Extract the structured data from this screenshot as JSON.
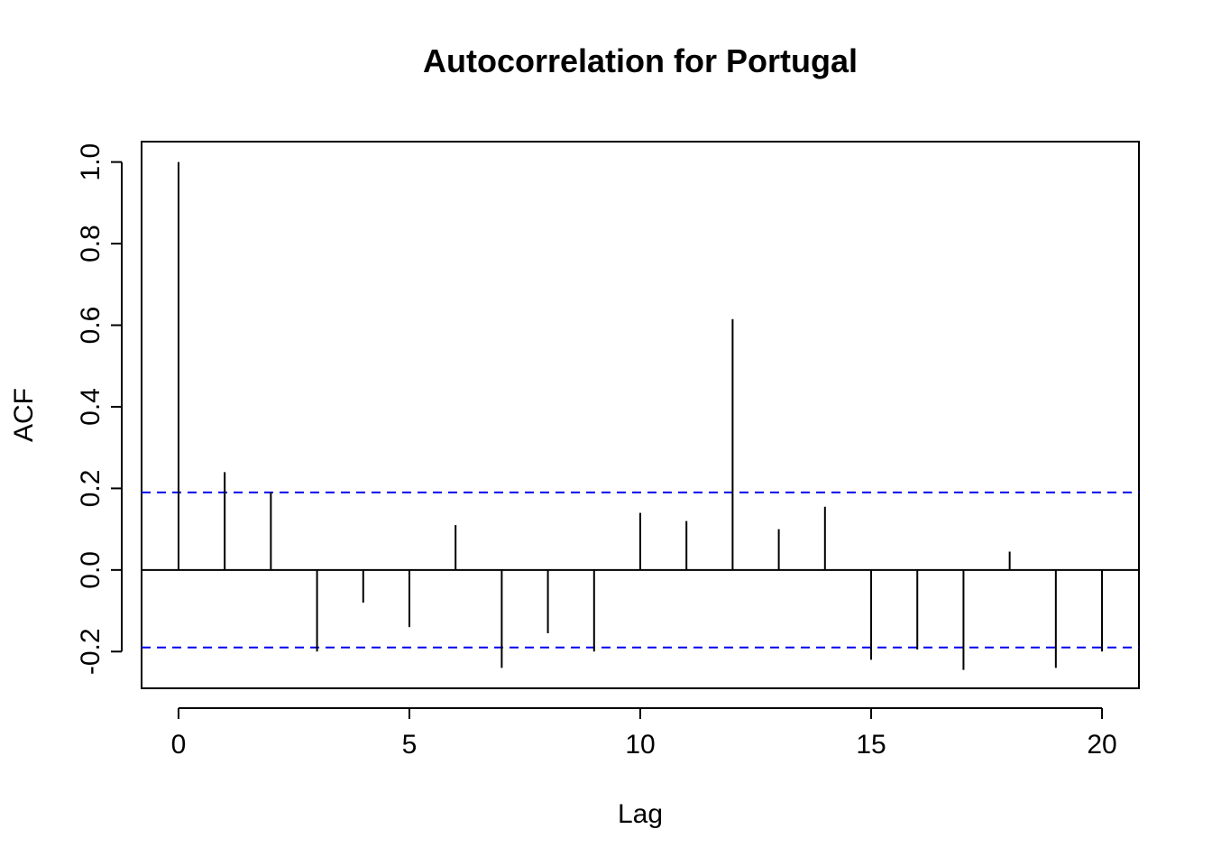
{
  "chart_data": {
    "type": "bar",
    "title": "Autocorrelation for Portugal",
    "xlabel": "Lag",
    "ylabel": "ACF",
    "x": [
      0,
      1,
      2,
      3,
      4,
      5,
      6,
      7,
      8,
      9,
      10,
      11,
      12,
      13,
      14,
      15,
      16,
      17,
      18,
      19,
      20
    ],
    "values": [
      1.0,
      0.24,
      0.19,
      -0.2,
      -0.08,
      -0.14,
      0.11,
      -0.24,
      -0.155,
      -0.2,
      0.14,
      0.12,
      0.615,
      0.1,
      0.155,
      -0.22,
      -0.195,
      -0.245,
      0.045,
      -0.24,
      -0.2
    ],
    "xlim": [
      -0.8,
      20.8
    ],
    "ylim": [
      -0.29,
      1.05
    ],
    "x_ticks": [
      0,
      5,
      10,
      15,
      20
    ],
    "x_tick_labels": [
      "0",
      "5",
      "10",
      "15",
      "20"
    ],
    "y_ticks": [
      -0.2,
      0.0,
      0.2,
      0.4,
      0.6,
      0.8,
      1.0
    ],
    "y_tick_labels": [
      "-0.2",
      "0.0",
      "0.2",
      "0.4",
      "0.6",
      "0.8",
      "1.0"
    ],
    "confidence_bounds": [
      0.19,
      -0.19
    ],
    "zero_line": 0,
    "grid": false,
    "colors": {
      "bars": "#000000",
      "confidence": "#0000ee",
      "frame": "#000000"
    }
  }
}
